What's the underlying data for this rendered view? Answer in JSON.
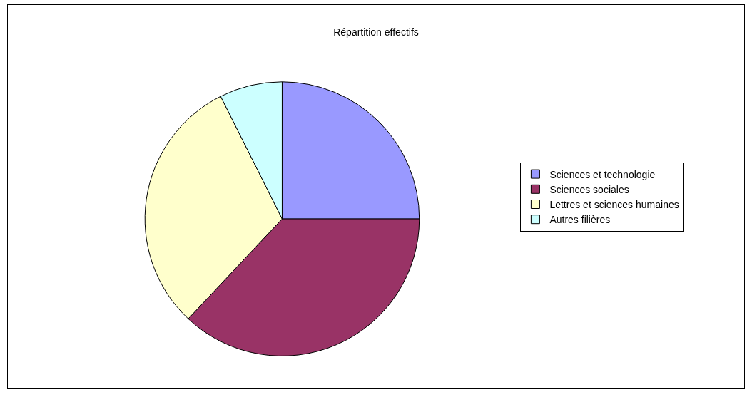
{
  "chart_data": {
    "type": "pie",
    "title": "Répartition effectifs",
    "categories": [
      "Sciences et technologie",
      "Sciences sociales",
      "Lettres et sciences humaines",
      "Autres filières"
    ],
    "values": [
      25,
      37,
      30.6,
      7.4
    ],
    "colors": [
      "#9999ff",
      "#993366",
      "#ffffcc",
      "#ccffff"
    ],
    "legend": "right"
  }
}
